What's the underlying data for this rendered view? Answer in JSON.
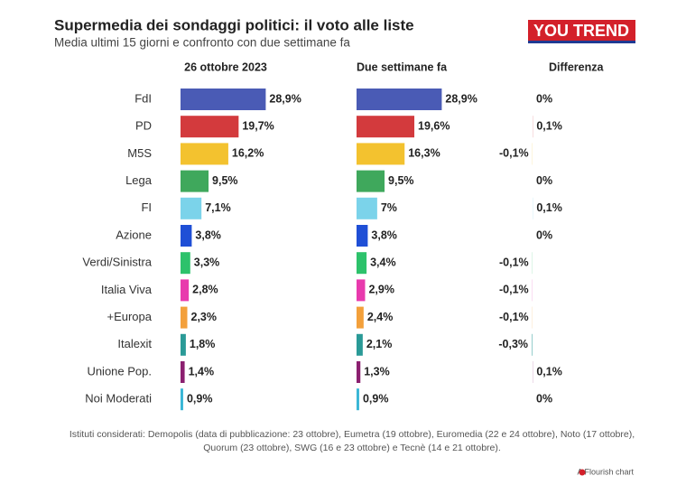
{
  "chart_data": {
    "type": "bar",
    "title": "Supermedia dei sondaggi politici: il voto alle liste",
    "subtitle": "Media ultimi 15 giorni e confronto con due settimane fa",
    "logo": "YOU TREND",
    "footnote": "Istituti considerati: Demopolis (data di pubblicazione: 23 ottobre), Eumetra (19 ottobre), Euromedia (22 e 24 ottobre), Noto (17 ottobre), Quorum (23 ottobre), SWG (16 e 23 ottobre) e Tecnè (14 e 21 ottobre).",
    "credit": "A Flourish chart",
    "categories": [
      "FdI",
      "PD",
      "M5S",
      "Lega",
      "FI",
      "Azione",
      "Verdi/Sinistra",
      "Italia Viva",
      "+Europa",
      "Italexit",
      "Unione Pop.",
      "Noi Moderati"
    ],
    "colors": [
      "#4a5bb5",
      "#d33a3d",
      "#f3c22f",
      "#3fa85c",
      "#7bd3ea",
      "#1f4fd6",
      "#2dc26b",
      "#e83aad",
      "#f3a03b",
      "#2a9a97",
      "#8b1f6f",
      "#39b6d6"
    ],
    "xlim": [
      0,
      30
    ],
    "series": [
      {
        "name": "26 ottobre 2023",
        "values": [
          28.9,
          19.7,
          16.2,
          9.5,
          7.1,
          3.8,
          3.3,
          2.8,
          2.3,
          1.8,
          1.4,
          0.9
        ],
        "value_labels": [
          "28,9%",
          "19,7%",
          "16,2%",
          "9,5%",
          "7,1%",
          "3,8%",
          "3,3%",
          "2,8%",
          "2,3%",
          "1,8%",
          "1,4%",
          "0,9%"
        ]
      },
      {
        "name": "Due settimane fa",
        "values": [
          28.9,
          19.6,
          16.3,
          9.5,
          7,
          3.8,
          3.4,
          2.9,
          2.4,
          2.1,
          1.3,
          0.9
        ],
        "value_labels": [
          "28,9%",
          "19,6%",
          "16,3%",
          "9,5%",
          "7%",
          "3,8%",
          "3,4%",
          "2,9%",
          "2,4%",
          "2,1%",
          "1,3%",
          "0,9%"
        ]
      },
      {
        "name": "Differenza",
        "values": [
          0,
          0.1,
          -0.1,
          0,
          0.1,
          0,
          -0.1,
          -0.1,
          -0.1,
          -0.3,
          0.1,
          0
        ],
        "value_labels": [
          "0%",
          "0,1%",
          "-0,1%",
          "0%",
          "0,1%",
          "0%",
          "-0,1%",
          "-0,1%",
          "-0,1%",
          "-0,3%",
          "0,1%",
          "0%"
        ]
      }
    ]
  }
}
